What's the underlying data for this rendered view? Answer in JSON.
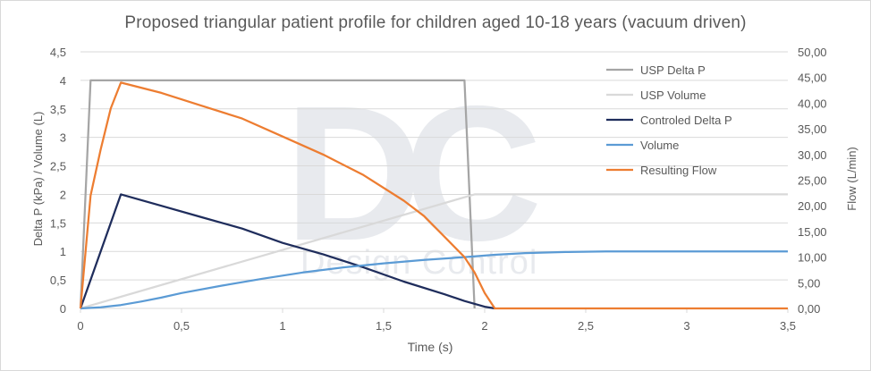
{
  "chart_data": {
    "type": "line",
    "title": "Proposed triangular patient profile for children aged 10-18 years (vacuum driven)",
    "xlabel": "Time (s)",
    "ylabel_left": "Delta P (kPa) / Volume (L)",
    "ylabel_right": "Flow (L/min)",
    "xlim": [
      0,
      3.5
    ],
    "ylim_left": [
      0,
      4.5
    ],
    "ylim_right": [
      0,
      50
    ],
    "x_ticks": [
      "0",
      "0,5",
      "1",
      "1,5",
      "2",
      "2,5",
      "3",
      "3,5"
    ],
    "y_left_ticks": [
      "0",
      "0,5",
      "1",
      "1,5",
      "2",
      "2,5",
      "3",
      "3,5",
      "4",
      "4,5"
    ],
    "y_right_ticks": [
      "0,00",
      "5,00",
      "10,00",
      "15,00",
      "20,00",
      "25,00",
      "30,00",
      "35,00",
      "40,00",
      "45,00",
      "50,00"
    ],
    "grid": "horizontal",
    "legend_position": "right",
    "series": [
      {
        "name": "USP Delta P",
        "axis": "left",
        "color": "#a5a5a5",
        "points": [
          [
            0,
            0
          ],
          [
            0.05,
            4
          ],
          [
            1.9,
            4
          ],
          [
            1.95,
            0
          ]
        ]
      },
      {
        "name": "USP Volume",
        "axis": "left",
        "color": "#d9d9d9",
        "points": [
          [
            0,
            0
          ],
          [
            1.95,
            2
          ],
          [
            3.5,
            2
          ]
        ]
      },
      {
        "name": "Controled Delta P",
        "axis": "left",
        "color": "#1f2d5c",
        "points": [
          [
            0,
            0
          ],
          [
            0.2,
            2
          ],
          [
            0.4,
            1.8
          ],
          [
            0.6,
            1.6
          ],
          [
            0.8,
            1.4
          ],
          [
            1.0,
            1.15
          ],
          [
            1.2,
            0.95
          ],
          [
            1.4,
            0.72
          ],
          [
            1.6,
            0.47
          ],
          [
            1.8,
            0.25
          ],
          [
            1.9,
            0.13
          ],
          [
            2.0,
            0.03
          ],
          [
            2.05,
            0
          ]
        ]
      },
      {
        "name": "Volume",
        "axis": "left",
        "color": "#5b9bd5",
        "points": [
          [
            0,
            0
          ],
          [
            0.1,
            0.02
          ],
          [
            0.2,
            0.06
          ],
          [
            0.3,
            0.12
          ],
          [
            0.4,
            0.19
          ],
          [
            0.5,
            0.27
          ],
          [
            0.7,
            0.4
          ],
          [
            0.9,
            0.52
          ],
          [
            1.1,
            0.63
          ],
          [
            1.3,
            0.72
          ],
          [
            1.5,
            0.79
          ],
          [
            1.7,
            0.85
          ],
          [
            1.9,
            0.9
          ],
          [
            2.05,
            0.94
          ],
          [
            2.2,
            0.97
          ],
          [
            2.4,
            0.99
          ],
          [
            2.6,
            1.0
          ],
          [
            3.5,
            1.0
          ]
        ]
      },
      {
        "name": "Resulting Flow",
        "axis": "right",
        "color": "#ed7d31",
        "points": [
          [
            0,
            0
          ],
          [
            0.05,
            22
          ],
          [
            0.1,
            31
          ],
          [
            0.15,
            39
          ],
          [
            0.2,
            44
          ],
          [
            0.4,
            42
          ],
          [
            0.6,
            39.5
          ],
          [
            0.8,
            37
          ],
          [
            1.0,
            33.5
          ],
          [
            1.2,
            30
          ],
          [
            1.4,
            26
          ],
          [
            1.6,
            21
          ],
          [
            1.7,
            18
          ],
          [
            1.8,
            14
          ],
          [
            1.9,
            10
          ],
          [
            1.95,
            7
          ],
          [
            2.0,
            3
          ],
          [
            2.05,
            0
          ],
          [
            3.5,
            0
          ]
        ]
      }
    ]
  },
  "watermark": {
    "logo_letters": "DC",
    "text": "Design Control"
  }
}
